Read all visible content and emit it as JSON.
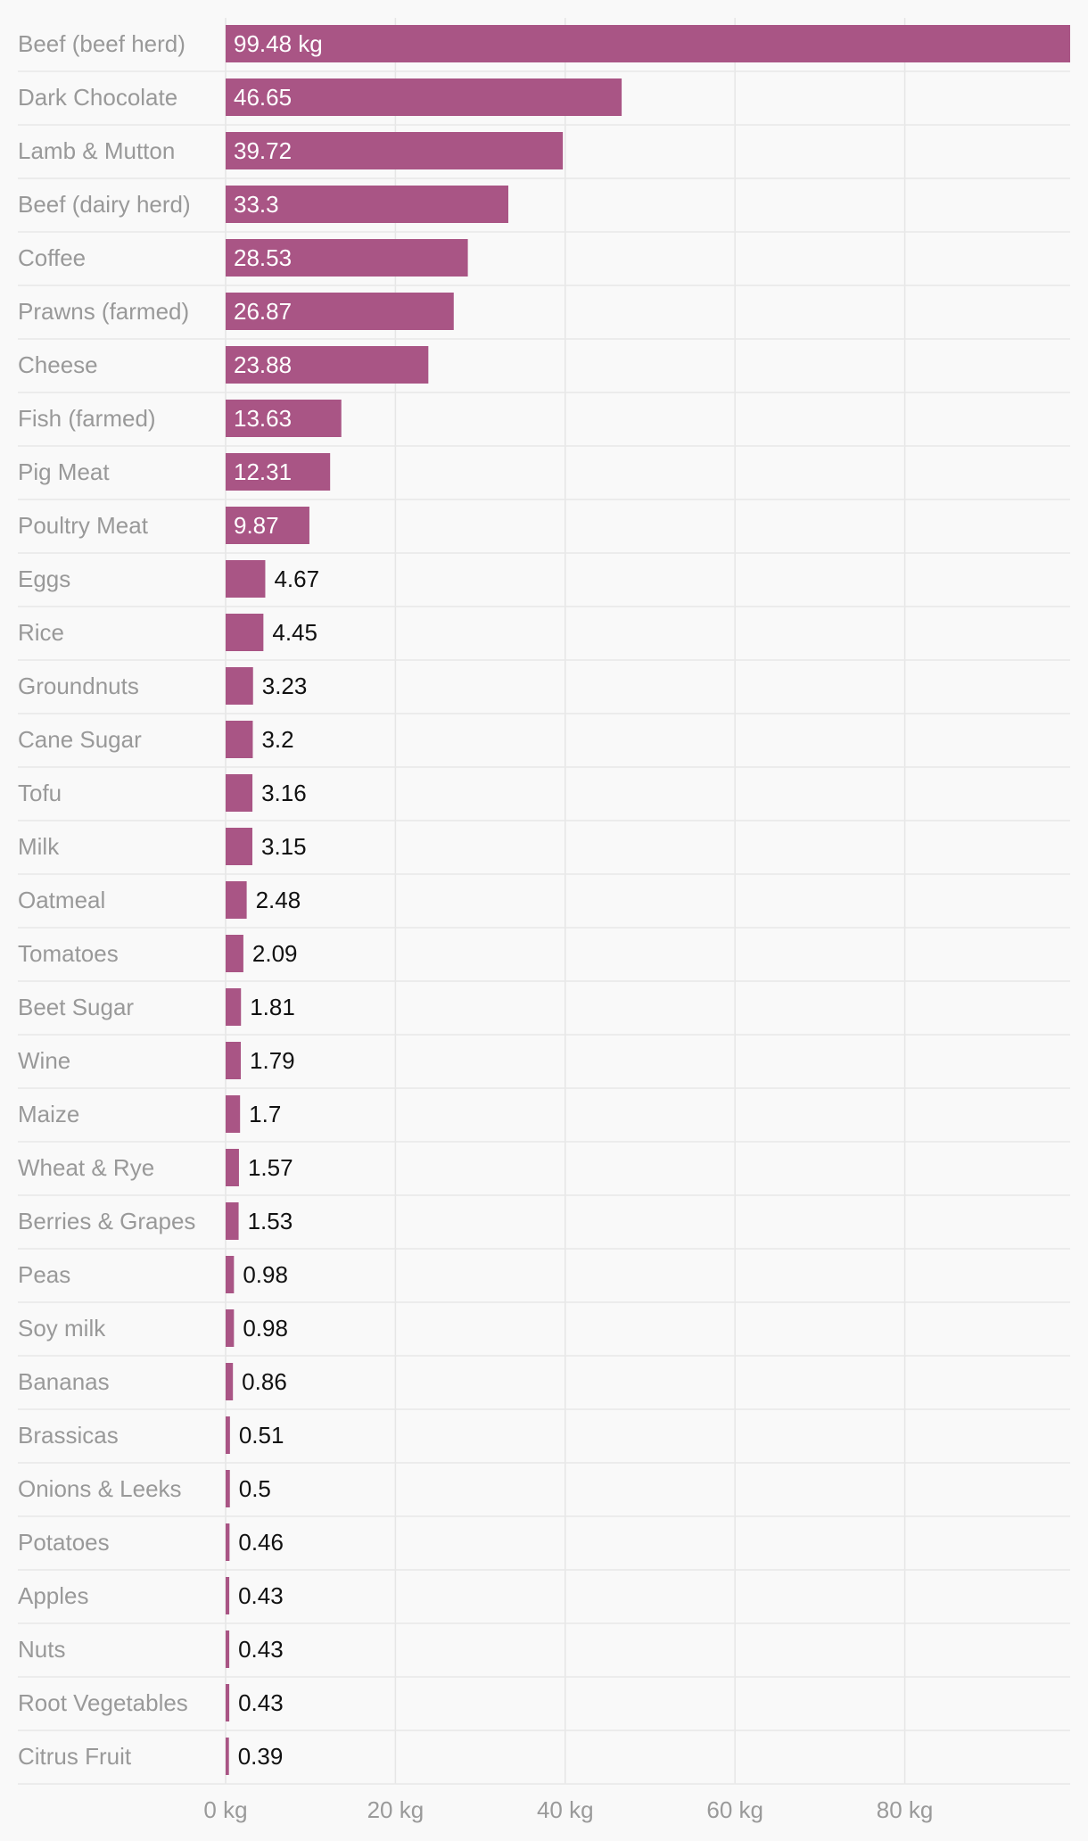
{
  "chart_data": {
    "type": "bar",
    "orientation": "horizontal",
    "categories": [
      "Beef (beef herd)",
      "Dark Chocolate",
      "Lamb & Mutton",
      "Beef (dairy herd)",
      "Coffee",
      "Prawns (farmed)",
      "Cheese",
      "Fish (farmed)",
      "Pig Meat",
      "Poultry Meat",
      "Eggs",
      "Rice",
      "Groundnuts",
      "Cane Sugar",
      "Tofu",
      "Milk",
      "Oatmeal",
      "Tomatoes",
      "Beet Sugar",
      "Wine",
      "Maize",
      "Wheat & Rye",
      "Berries & Grapes",
      "Peas",
      "Soy milk",
      "Bananas",
      "Brassicas",
      "Onions & Leeks",
      "Potatoes",
      "Apples",
      "Nuts",
      "Root Vegetables",
      "Citrus Fruit"
    ],
    "values": [
      99.48,
      46.65,
      39.72,
      33.3,
      28.53,
      26.87,
      23.88,
      13.63,
      12.31,
      9.87,
      4.67,
      4.45,
      3.23,
      3.2,
      3.16,
      3.15,
      2.48,
      2.09,
      1.81,
      1.79,
      1.7,
      1.57,
      1.53,
      0.98,
      0.98,
      0.86,
      0.51,
      0.5,
      0.46,
      0.43,
      0.43,
      0.43,
      0.39
    ],
    "value_labels": [
      "99.48 kg",
      "46.65",
      "39.72",
      "33.3",
      "28.53",
      "26.87",
      "23.88",
      "13.63",
      "12.31",
      "9.87",
      "4.67",
      "4.45",
      "3.23",
      "3.2",
      "3.16",
      "3.15",
      "2.48",
      "2.09",
      "1.81",
      "1.79",
      "1.7",
      "1.57",
      "1.53",
      "0.98",
      "0.98",
      "0.86",
      "0.51",
      "0.5",
      "0.46",
      "0.43",
      "0.43",
      "0.43",
      "0.39"
    ],
    "xlim": [
      0,
      99.48
    ],
    "x_ticks": [
      0,
      20,
      40,
      60,
      80
    ],
    "x_tick_labels": [
      "0 kg",
      "20 kg",
      "40 kg",
      "60 kg",
      "80 kg"
    ],
    "inside_label_threshold": 9,
    "grid": true,
    "bar_color": "#a95585",
    "inside_label_color": "#ffffff",
    "outside_label_color": "#111111"
  }
}
